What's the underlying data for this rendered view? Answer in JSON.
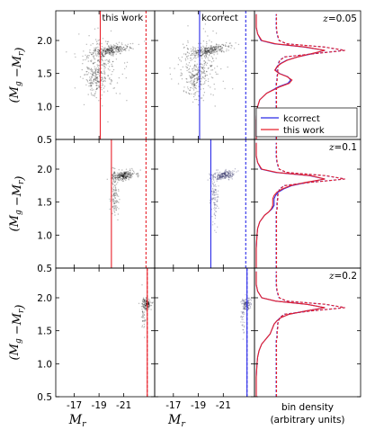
{
  "chart_data": {
    "type": "scatter",
    "layout": "3x3 panel grid, shared axes",
    "colors": {
      "this_work": "#e8202a",
      "kcorrect": "#2a2ae8",
      "points": "#000000",
      "axes": "#000000"
    },
    "y_axis": {
      "label_main": "(M",
      "label_sub_g": "g",
      "label_mid": " −M",
      "label_sub_r": "r",
      "label_end": ")",
      "ylim": [
        0.5,
        2.45
      ],
      "ticks": [
        "0.5",
        "1.0",
        "1.5",
        "2.0"
      ],
      "tick_values": [
        0.5,
        1.0,
        1.5,
        2.0
      ]
    },
    "x_axis": {
      "label_main": "M",
      "label_sub": "r",
      "xlim": [
        -15.5,
        -23.5
      ],
      "ticks": [
        "-17",
        "-19",
        "-21"
      ],
      "tick_values": [
        -17,
        -19,
        -21
      ]
    },
    "right_axis": {
      "label_line1": "bin density",
      "label_line2": "(arbitrary units)"
    },
    "column_labels": [
      "this work",
      "kcorrect"
    ],
    "legend": {
      "position": "lower-right of top-right panel",
      "entries": [
        {
          "name": "kcorrect",
          "color": "#2a2ae8"
        },
        {
          "name": "this work",
          "color": "#e8202a"
        }
      ]
    },
    "rows": [
      {
        "z_label": "z = 0.05",
        "z_pre": "z",
        "z_val": "=0.05",
        "this_work_cut": -19.1,
        "kcorrect_cut": -19.1,
        "mag_limit": -22.8,
        "clusters": [
          {
            "mag": -19.9,
            "color": 1.85,
            "mag_spread": 1.6,
            "color_spread": 0.035,
            "n": 260,
            "tilt": 0.035
          },
          {
            "mag": -18.8,
            "color": 1.42,
            "mag_spread": 0.9,
            "color_spread": 0.13,
            "n": 170,
            "tilt": 0.06
          },
          {
            "mag": -19.2,
            "color": 1.65,
            "mag_spread": 1.8,
            "color_spread": 0.22,
            "n": 200,
            "tilt": 0.0
          }
        ],
        "hist_color": [
          0.5,
          0.8,
          1.0,
          1.1,
          1.2,
          1.3,
          1.35,
          1.4,
          1.45,
          1.5,
          1.55,
          1.6,
          1.65,
          1.7,
          1.75,
          1.8,
          1.85,
          1.9,
          1.95,
          2.0,
          2.1,
          2.2,
          2.4
        ],
        "hist_this_work": [
          0,
          0,
          0.02,
          0.05,
          0.15,
          0.35,
          0.48,
          0.52,
          0.45,
          0.33,
          0.27,
          0.3,
          0.36,
          0.45,
          0.6,
          0.8,
          1.0,
          0.72,
          0.28,
          0.08,
          0.02,
          0,
          0
        ],
        "hist_kcorrect": [
          0,
          0,
          0.02,
          0.05,
          0.15,
          0.33,
          0.46,
          0.5,
          0.46,
          0.34,
          0.28,
          0.3,
          0.35,
          0.44,
          0.6,
          0.82,
          1.0,
          0.7,
          0.26,
          0.07,
          0.02,
          0,
          0
        ],
        "hist_limited": [
          0,
          0,
          0,
          0,
          0,
          0,
          0,
          0.01,
          0.01,
          0.02,
          0.02,
          0.02,
          0.03,
          0.05,
          0.12,
          0.55,
          1.0,
          0.7,
          0.15,
          0.04,
          0.01,
          0,
          0
        ],
        "hist_limited_offset": 0.29
      },
      {
        "z_label": "z = 0.1",
        "z_pre": "z",
        "z_val": "=0.1",
        "this_work_cut": -20.0,
        "kcorrect_cut": -20.0,
        "mag_limit": -22.8,
        "clusters": [
          {
            "mag": -21.0,
            "color": 1.9,
            "mag_spread": 0.9,
            "color_spread": 0.035,
            "n": 240,
            "tilt": 0.03
          },
          {
            "mag": -20.3,
            "color": 1.6,
            "mag_spread": 0.3,
            "color_spread": 0.2,
            "n": 110,
            "tilt": 0.0
          }
        ],
        "hist_color": [
          0.5,
          0.8,
          1.0,
          1.1,
          1.2,
          1.3,
          1.35,
          1.4,
          1.45,
          1.5,
          1.55,
          1.6,
          1.65,
          1.7,
          1.75,
          1.8,
          1.85,
          1.9,
          1.95,
          2.0,
          2.1,
          2.2,
          2.4
        ],
        "hist_this_work": [
          0,
          0,
          0.01,
          0.02,
          0.05,
          0.12,
          0.18,
          0.22,
          0.24,
          0.24,
          0.24,
          0.26,
          0.3,
          0.38,
          0.5,
          0.72,
          1.0,
          0.8,
          0.3,
          0.08,
          0.02,
          0,
          0
        ],
        "hist_kcorrect": [
          0,
          0,
          0.01,
          0.02,
          0.05,
          0.12,
          0.18,
          0.23,
          0.26,
          0.26,
          0.26,
          0.28,
          0.32,
          0.4,
          0.52,
          0.74,
          1.0,
          0.78,
          0.28,
          0.07,
          0.02,
          0,
          0
        ],
        "hist_limited": [
          0,
          0,
          0,
          0,
          0,
          0,
          0,
          0.01,
          0.01,
          0.01,
          0.02,
          0.02,
          0.03,
          0.05,
          0.12,
          0.5,
          1.0,
          0.72,
          0.15,
          0.04,
          0.01,
          0,
          0
        ],
        "hist_limited_offset": 0.29
      },
      {
        "z_label": "z = 0.2",
        "z_pre": "z",
        "z_val": "=0.2",
        "this_work_cut": -22.9,
        "kcorrect_cut": -22.9,
        "mag_limit": -22.9,
        "clusters": [
          {
            "mag": -22.85,
            "color": 1.9,
            "mag_spread": 0.35,
            "color_spread": 0.04,
            "n": 140,
            "tilt": 0.0
          },
          {
            "mag": -22.6,
            "color": 1.7,
            "mag_spread": 0.2,
            "color_spread": 0.15,
            "n": 40,
            "tilt": 0.0
          }
        ],
        "hist_color": [
          0.5,
          0.8,
          1.0,
          1.1,
          1.2,
          1.3,
          1.35,
          1.4,
          1.45,
          1.5,
          1.55,
          1.6,
          1.65,
          1.7,
          1.75,
          1.8,
          1.85,
          1.9,
          1.95,
          2.0,
          2.1,
          2.2,
          2.4
        ],
        "hist_this_work": [
          0,
          0,
          0.01,
          0.02,
          0.04,
          0.08,
          0.12,
          0.16,
          0.2,
          0.22,
          0.24,
          0.26,
          0.3,
          0.36,
          0.48,
          0.72,
          1.0,
          0.74,
          0.28,
          0.08,
          0.02,
          0,
          0
        ],
        "hist_kcorrect": [
          0,
          0,
          0.01,
          0.02,
          0.04,
          0.08,
          0.12,
          0.16,
          0.2,
          0.22,
          0.24,
          0.26,
          0.3,
          0.36,
          0.48,
          0.72,
          1.0,
          0.74,
          0.28,
          0.08,
          0.02,
          0,
          0
        ],
        "hist_limited": [
          0,
          0,
          0,
          0,
          0,
          0,
          0,
          0.01,
          0.01,
          0.01,
          0.02,
          0.02,
          0.03,
          0.05,
          0.12,
          0.5,
          1.0,
          0.72,
          0.15,
          0.04,
          0.01,
          0,
          0
        ],
        "hist_limited_offset": 0.29
      }
    ]
  }
}
